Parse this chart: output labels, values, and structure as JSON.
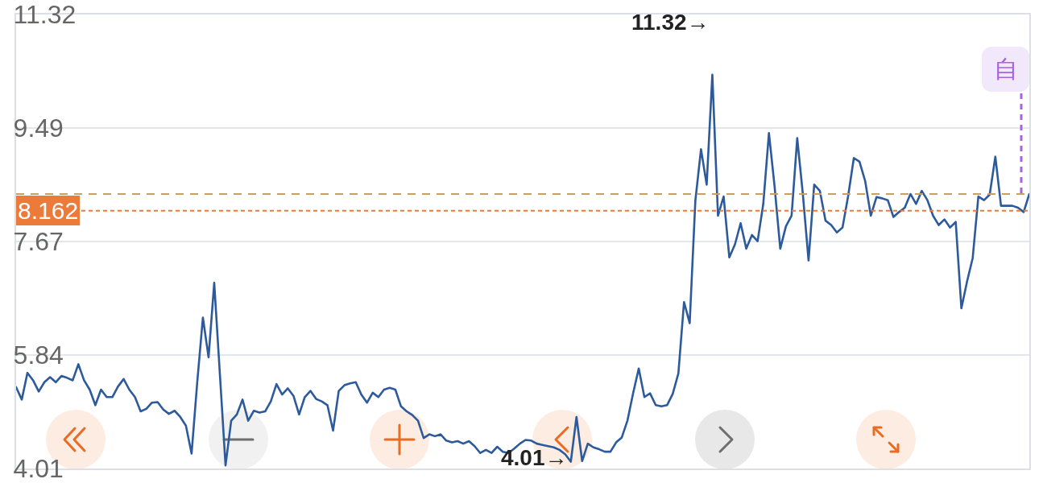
{
  "chart_data": {
    "type": "line",
    "categories": [
      null,
      null,
      null,
      null,
      null,
      null,
      null,
      null,
      null,
      null,
      null,
      null,
      null,
      null,
      null,
      null,
      null,
      null,
      null,
      null,
      null,
      null,
      null,
      null,
      null,
      null,
      null,
      null,
      null,
      null,
      null,
      null,
      null,
      null,
      null,
      null,
      null,
      null,
      null,
      null,
      null,
      null,
      null,
      null,
      null,
      null,
      null,
      null,
      null,
      null,
      null,
      null,
      null,
      null,
      null,
      null,
      null,
      null,
      null,
      null,
      null,
      null,
      null,
      null,
      null,
      null,
      null,
      null,
      null,
      null,
      null,
      null,
      null,
      null,
      null,
      null,
      null,
      null,
      null,
      null,
      null,
      null,
      null,
      null,
      null,
      null,
      null,
      null,
      null,
      null,
      null,
      null,
      null,
      null,
      null,
      null,
      null,
      null,
      null,
      null,
      null,
      null,
      null,
      null,
      null,
      null,
      null,
      null,
      null,
      null,
      null,
      null,
      null,
      null,
      null,
      null,
      null,
      null,
      null,
      null,
      null,
      null,
      null,
      null,
      null,
      null,
      null,
      null,
      null,
      null,
      null,
      null,
      null,
      null,
      null,
      null,
      null,
      null,
      null,
      null,
      null,
      null,
      null,
      null,
      null,
      null,
      null,
      null,
      null,
      null,
      null,
      null,
      null,
      null,
      null,
      null,
      null,
      null,
      null,
      null,
      null,
      null,
      null,
      null,
      null,
      null,
      null,
      null,
      null,
      null,
      null,
      null,
      null,
      null,
      null,
      null,
      null,
      null,
      null,
      null
    ],
    "series": [
      {
        "color": "#2d5a9b",
        "values": [
          5.32,
          5.12,
          5.55,
          5.43,
          5.25,
          5.4,
          5.48,
          5.4,
          5.5,
          5.47,
          5.43,
          5.69,
          5.43,
          5.28,
          5.03,
          5.28,
          5.16,
          5.16,
          5.33,
          5.45,
          5.28,
          5.16,
          4.93,
          4.97,
          5.07,
          5.08,
          4.96,
          4.89,
          4.94,
          4.84,
          4.7,
          4.25,
          5.4,
          6.44,
          5.8,
          7.0,
          5.53,
          4.06,
          4.78,
          4.88,
          5.12,
          4.78,
          4.94,
          4.91,
          4.93,
          5.09,
          5.37,
          5.2,
          5.3,
          5.18,
          4.88,
          5.16,
          5.26,
          5.13,
          5.09,
          5.03,
          4.62,
          5.26,
          5.35,
          5.38,
          5.4,
          5.2,
          5.07,
          5.23,
          5.16,
          5.28,
          5.31,
          5.28,
          5.01,
          4.93,
          4.87,
          4.78,
          4.5,
          4.56,
          4.53,
          4.56,
          4.46,
          4.43,
          4.45,
          4.41,
          4.45,
          4.37,
          4.26,
          4.31,
          4.26,
          4.36,
          4.28,
          4.26,
          4.33,
          4.41,
          4.47,
          4.46,
          4.41,
          4.39,
          4.37,
          4.35,
          4.31,
          4.24,
          4.12,
          4.84,
          4.13,
          4.41,
          4.35,
          4.32,
          4.28,
          4.28,
          4.43,
          4.51,
          4.78,
          5.22,
          5.62,
          5.16,
          5.22,
          5.03,
          5.01,
          5.03,
          5.21,
          5.54,
          6.69,
          6.35,
          8.32,
          9.15,
          8.58,
          10.35,
          8.08,
          8.39,
          7.41,
          7.62,
          7.96,
          7.55,
          7.77,
          7.67,
          8.27,
          9.41,
          8.55,
          7.55,
          7.91,
          8.08,
          9.33,
          8.42,
          7.36,
          8.58,
          8.48,
          8.0,
          7.93,
          7.81,
          7.89,
          8.4,
          9.01,
          8.95,
          8.64,
          8.08,
          8.38,
          8.36,
          8.33,
          8.06,
          8.14,
          8.21,
          8.43,
          8.27,
          8.48,
          8.33,
          8.08,
          7.93,
          8.02,
          7.89,
          7.98,
          6.59,
          7.02,
          7.4,
          8.39,
          8.33,
          8.42,
          9.03,
          8.24,
          8.24,
          8.24,
          8.21,
          8.14,
          8.43
        ]
      }
    ],
    "ylim": [
      4.01,
      11.32
    ],
    "yticks": [
      4.01,
      5.84,
      7.67,
      9.49,
      11.32
    ],
    "grid": "y",
    "tick_labels": "y",
    "line_style": "solid",
    "ref_lines": [
      {
        "axis": "y",
        "value": 8.43,
        "color": "#c9a064",
        "line_style": "dashed"
      },
      {
        "axis": "y",
        "value": 8.162,
        "label": "8.162",
        "color": "#ec7b3a",
        "line_style": "dotted"
      }
    ],
    "annotations": [
      "11.32→",
      "4.01→",
      "自"
    ]
  }
}
